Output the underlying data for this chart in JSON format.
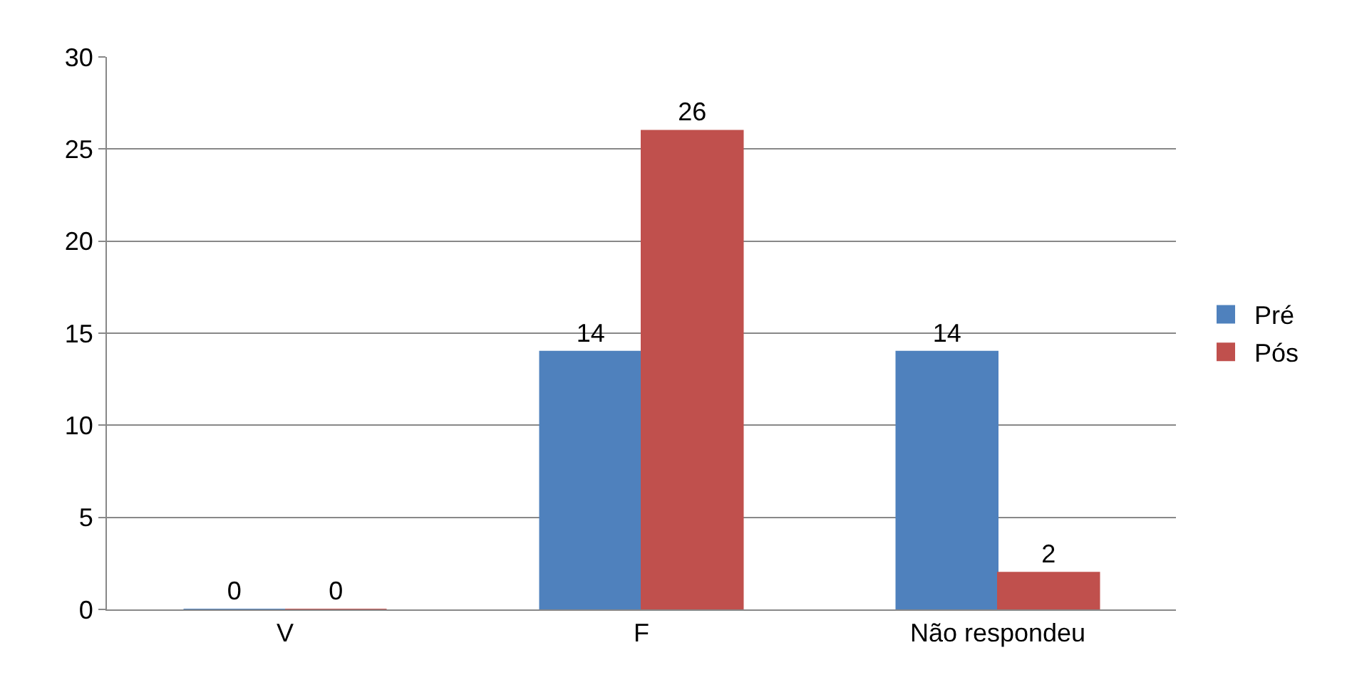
{
  "chart_data": {
    "type": "bar",
    "categories": [
      "V",
      "F",
      "Não respondeu"
    ],
    "series": [
      {
        "name": "Pré",
        "color": "#4f81bd",
        "values": [
          0,
          14,
          14
        ]
      },
      {
        "name": "Pós",
        "color": "#c0504d",
        "values": [
          0,
          26,
          2
        ]
      }
    ],
    "ylim": [
      0,
      30
    ],
    "yticks": [
      0,
      5,
      10,
      15,
      20,
      25,
      30
    ],
    "grid": "y",
    "legend": "right",
    "data_labels": true
  }
}
